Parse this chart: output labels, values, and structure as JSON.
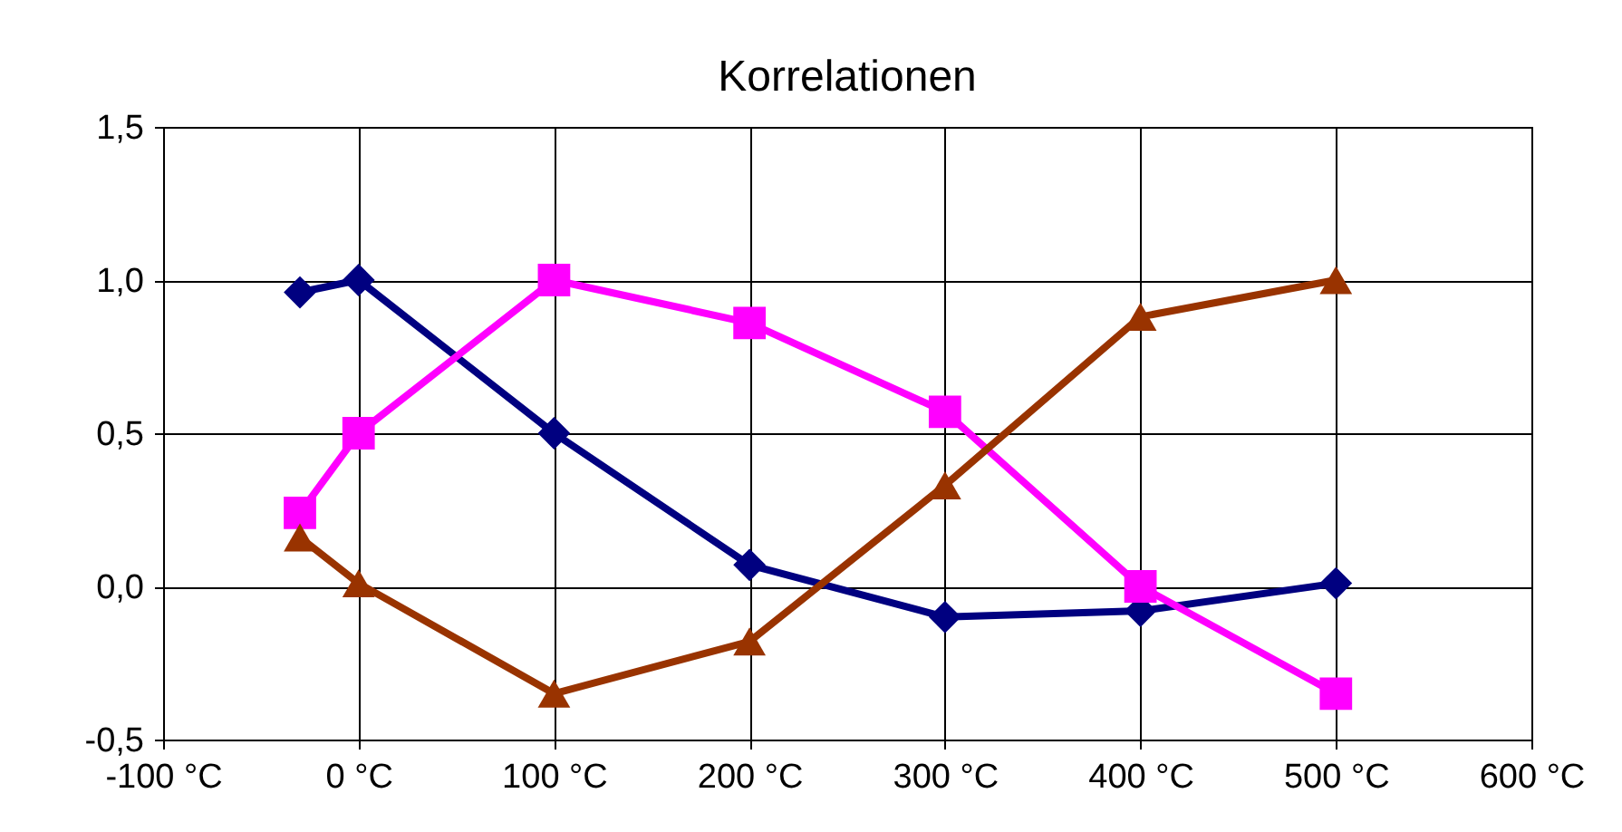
{
  "chart_data": {
    "type": "line",
    "title": "Korrelationen",
    "x": [
      -30,
      0,
      100,
      200,
      300,
      400,
      500
    ],
    "series": [
      {
        "color": "#000080",
        "marker": "diamond",
        "values": [
          0.96,
          1.0,
          0.5,
          0.07,
          -0.1,
          -0.08,
          0.01
        ]
      },
      {
        "color": "#ff00ff",
        "marker": "square",
        "values": [
          0.24,
          0.5,
          1.0,
          0.86,
          0.57,
          0.0,
          -0.35
        ]
      },
      {
        "color": "#993300",
        "marker": "triangle",
        "values": [
          0.16,
          0.01,
          -0.35,
          -0.18,
          0.33,
          0.88,
          1.0
        ]
      }
    ],
    "xlim": [
      -100,
      600
    ],
    "xticks": [
      {
        "value": -100,
        "label": "-100 °C"
      },
      {
        "value": 0,
        "label": "0 °C"
      },
      {
        "value": 100,
        "label": "100 °C"
      },
      {
        "value": 200,
        "label": "200 °C"
      },
      {
        "value": 300,
        "label": "300 °C"
      },
      {
        "value": 400,
        "label": "400 °C"
      },
      {
        "value": 500,
        "label": "500 °C"
      },
      {
        "value": 600,
        "label": "600 °C"
      }
    ],
    "ylim": [
      -0.5,
      1.5
    ],
    "yticks": [
      {
        "value": -0.5,
        "label": "-0,5"
      },
      {
        "value": 0,
        "label": "0,0"
      },
      {
        "value": 0.5,
        "label": "0,5"
      },
      {
        "value": 1.0,
        "label": "1,0"
      },
      {
        "value": 1.5,
        "label": "1,5"
      }
    ],
    "grid": true,
    "line_style": "solid"
  }
}
